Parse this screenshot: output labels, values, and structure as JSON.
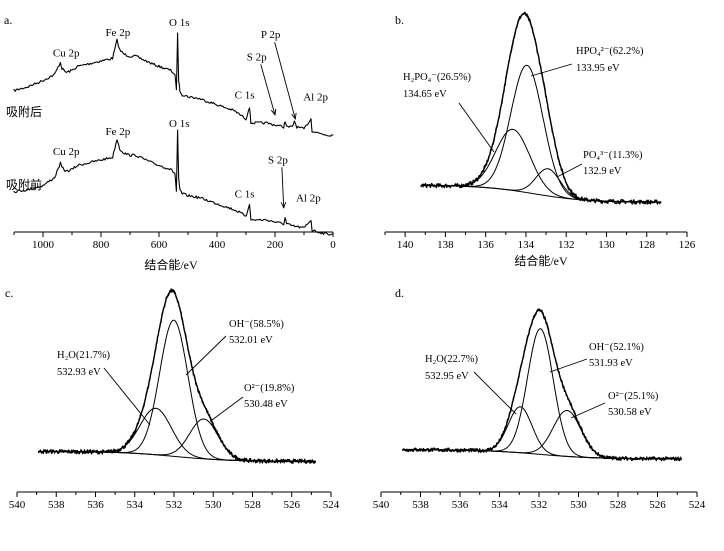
{
  "chart_data": [
    {
      "id": "a",
      "type": "line",
      "panel_label": "a.",
      "title": "",
      "xlabel": "结合能/eV",
      "ylabel": "",
      "xlim": [
        1100,
        0
      ],
      "x_ticks": [
        1000,
        800,
        600,
        400,
        200,
        0
      ],
      "series": [
        {
          "name": "吸附后",
          "label": "吸附后",
          "baseline": 0.74,
          "points": [
            [
              1100,
              0.3
            ],
            [
              1050,
              0.28
            ],
            [
              1000,
              0.25
            ],
            [
              960,
              0.22
            ],
            [
              940,
              0.16
            ],
            [
              935,
              0.19
            ],
            [
              920,
              0.21
            ],
            [
              900,
              0.2
            ],
            [
              880,
              0.18
            ],
            [
              850,
              0.17
            ],
            [
              820,
              0.16
            ],
            [
              790,
              0.15
            ],
            [
              760,
              0.14
            ],
            [
              745,
              0.05
            ],
            [
              735,
              0.1
            ],
            [
              720,
              0.12
            ],
            [
              700,
              0.13
            ],
            [
              680,
              0.13
            ],
            [
              650,
              0.15
            ],
            [
              620,
              0.17
            ],
            [
              600,
              0.18
            ],
            [
              580,
              0.19
            ],
            [
              560,
              0.2
            ],
            [
              545,
              0.22
            ],
            [
              540,
              0.3
            ],
            [
              536,
              0.02
            ],
            [
              532,
              0.25
            ],
            [
              528,
              0.3
            ],
            [
              520,
              0.32
            ],
            [
              500,
              0.33
            ],
            [
              460,
              0.34
            ],
            [
              420,
              0.36
            ],
            [
              380,
              0.38
            ],
            [
              340,
              0.4
            ],
            [
              300,
              0.44
            ],
            [
              288,
              0.38
            ],
            [
              283,
              0.46
            ],
            [
              260,
              0.46
            ],
            [
              230,
              0.46
            ],
            [
              200,
              0.47
            ],
            [
              170,
              0.48
            ],
            [
              165,
              0.45
            ],
            [
              160,
              0.48
            ],
            [
              140,
              0.48
            ],
            [
              133,
              0.45
            ],
            [
              125,
              0.48
            ],
            [
              100,
              0.49
            ],
            [
              76,
              0.44
            ],
            [
              72,
              0.5
            ],
            [
              50,
              0.51
            ],
            [
              20,
              0.52
            ],
            [
              0,
              0.52
            ]
          ]
        },
        {
          "name": "吸附前",
          "label": "吸附前",
          "baseline": 1.22,
          "points": [
            [
              1100,
              0.8
            ],
            [
              1050,
              0.79
            ],
            [
              1000,
              0.77
            ],
            [
              960,
              0.73
            ],
            [
              940,
              0.66
            ],
            [
              935,
              0.68
            ],
            [
              920,
              0.7
            ],
            [
              900,
              0.69
            ],
            [
              880,
              0.67
            ],
            [
              850,
              0.66
            ],
            [
              820,
              0.65
            ],
            [
              790,
              0.64
            ],
            [
              760,
              0.63
            ],
            [
              745,
              0.54
            ],
            [
              735,
              0.59
            ],
            [
              720,
              0.61
            ],
            [
              700,
              0.62
            ],
            [
              680,
              0.62
            ],
            [
              650,
              0.64
            ],
            [
              620,
              0.66
            ],
            [
              600,
              0.67
            ],
            [
              580,
              0.68
            ],
            [
              560,
              0.69
            ],
            [
              545,
              0.71
            ],
            [
              540,
              0.8
            ],
            [
              536,
              0.5
            ],
            [
              532,
              0.74
            ],
            [
              528,
              0.79
            ],
            [
              520,
              0.81
            ],
            [
              500,
              0.82
            ],
            [
              460,
              0.83
            ],
            [
              420,
              0.85
            ],
            [
              380,
              0.87
            ],
            [
              340,
              0.89
            ],
            [
              300,
              0.92
            ],
            [
              288,
              0.86
            ],
            [
              283,
              0.94
            ],
            [
              260,
              0.94
            ],
            [
              230,
              0.94
            ],
            [
              200,
              0.95
            ],
            [
              170,
              0.96
            ],
            [
              165,
              0.93
            ],
            [
              160,
              0.96
            ],
            [
              140,
              0.97
            ],
            [
              100,
              0.98
            ],
            [
              76,
              0.94
            ],
            [
              72,
              0.99
            ],
            [
              50,
              1.0
            ],
            [
              20,
              1.01
            ],
            [
              0,
              1.01
            ]
          ]
        }
      ],
      "annotations": [
        {
          "text": "Cu 2p",
          "x": 920,
          "y": 0.13
        },
        {
          "text": "Fe 2p",
          "x": 742,
          "y": 0.03
        },
        {
          "text": "O 1s",
          "x": 530,
          "y": -0.02
        },
        {
          "text": "S 2p",
          "x": 263,
          "y": 0.15,
          "arrow_to": [
            200,
            0.42
          ]
        },
        {
          "text": "P 2p",
          "x": 215,
          "y": 0.04,
          "arrow_to": [
            130,
            0.44
          ]
        },
        {
          "text": "C 1s",
          "x": 305,
          "y": 0.34
        },
        {
          "text": "Al 2p",
          "x": 60,
          "y": 0.35
        },
        {
          "text": "O 1s",
          "x": 530,
          "y": 0.48
        },
        {
          "text": "Cu 2p",
          "x": 920,
          "y": 0.62
        },
        {
          "text": "Fe 2p",
          "x": 742,
          "y": 0.52
        },
        {
          "text": "S 2p",
          "x": 190,
          "y": 0.66,
          "arrow_to": [
            170,
            0.88
          ]
        },
        {
          "text": "C 1s",
          "x": 305,
          "y": 0.83
        },
        {
          "text": "Al 2p",
          "x": 85,
          "y": 0.85
        }
      ]
    },
    {
      "id": "b",
      "type": "line",
      "panel_label": "b.",
      "title": "",
      "xlabel": "结合能/eV",
      "ylabel": "",
      "xlim": [
        141,
        126
      ],
      "ylim": [
        -0.04,
        1.05
      ],
      "x_ticks": [
        140,
        138,
        136,
        134,
        132,
        130,
        128,
        126
      ],
      "noisy_range": [
        139.2,
        127.3
      ],
      "background": {
        "left": 0.1,
        "right": 0.0,
        "center": 133.6,
        "width": 1.3
      },
      "components": [
        {
          "name": "H2PO4-",
          "center": 134.65,
          "height": 0.36,
          "width": 0.85,
          "label": "H₂PO₄⁻(26.5%)",
          "energy_label": "134.65 eV"
        },
        {
          "name": "HPO4 2-",
          "center": 133.95,
          "height": 0.75,
          "width": 0.8,
          "label": "HPO₄²⁻(62.2%)",
          "energy_label": "133.95 eV"
        },
        {
          "name": "PO4 3-",
          "center": 132.9,
          "height": 0.16,
          "width": 0.6,
          "label": "PO₄³⁻(11.3%)",
          "energy_label": "132.9 eV"
        }
      ],
      "legend": "none"
    },
    {
      "id": "c",
      "type": "line",
      "panel_label": "c.",
      "title": "",
      "xlabel": "",
      "ylabel": "",
      "xlim": [
        540,
        524
      ],
      "ylim": [
        -0.04,
        1.05
      ],
      "x_ticks": [
        540,
        538,
        536,
        534,
        532,
        530,
        528,
        526,
        524
      ],
      "noisy_range": [
        538.9,
        524.8
      ],
      "background": {
        "left": 0.06,
        "right": 0.0,
        "center": 532.0,
        "width": 1.4
      },
      "components": [
        {
          "name": "H2O",
          "center": 532.93,
          "height": 0.28,
          "width": 0.8,
          "label": "H₂O(21.7%)",
          "energy_label": "532.93 eV"
        },
        {
          "name": "OH-",
          "center": 532.01,
          "height": 0.82,
          "width": 0.72,
          "label": "OH⁻(58.5%)",
          "energy_label": "532.01 eV"
        },
        {
          "name": "O2-",
          "center": 530.48,
          "height": 0.24,
          "width": 0.72,
          "label": "O²⁻(19.8%)",
          "energy_label": "530.48 eV"
        }
      ],
      "legend": "none"
    },
    {
      "id": "d",
      "type": "line",
      "panel_label": "d.",
      "title": "",
      "xlabel": "",
      "ylabel": "",
      "xlim": [
        540,
        524
      ],
      "ylim": [
        -0.04,
        1.05
      ],
      "x_ticks": [
        540,
        538,
        536,
        534,
        532,
        530,
        528,
        526,
        524
      ],
      "noisy_range": [
        538.9,
        524.8
      ],
      "background": {
        "left": 0.06,
        "right": 0.0,
        "center": 532.0,
        "width": 1.4
      },
      "components": [
        {
          "name": "H2O",
          "center": 532.95,
          "height": 0.3,
          "width": 0.6,
          "label": "H₂O(22.7%)",
          "energy_label": "532.95 eV"
        },
        {
          "name": "OH-",
          "center": 531.93,
          "height": 0.82,
          "width": 0.65,
          "label": "OH⁻(52.1%)",
          "energy_label": "531.93 eV"
        },
        {
          "name": "O2-",
          "center": 530.58,
          "height": 0.3,
          "width": 0.7,
          "label": "O²⁻(25.1%)",
          "energy_label": "530.58 eV"
        }
      ],
      "legend": "none"
    }
  ]
}
